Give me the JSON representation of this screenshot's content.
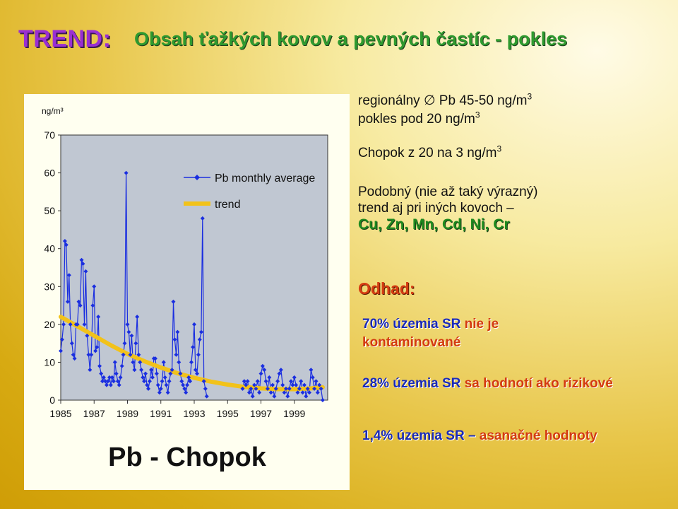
{
  "header": {
    "trend_label": "TREND:",
    "title": "Obsah ťažkých kovov a pevných častíc - pokles"
  },
  "chart_data": {
    "type": "line",
    "title": "Pb - Chopok",
    "ylabel": "ng/m³",
    "xlim": [
      1985,
      2001
    ],
    "ylim": [
      0,
      70
    ],
    "y_ticks": [
      "0",
      "10",
      "20",
      "30",
      "40",
      "50",
      "60",
      "70"
    ],
    "x_ticks": [
      "1985",
      "1987",
      "1989",
      "1991",
      "1993",
      "1995",
      "1997",
      "1999"
    ],
    "grid": false,
    "legend_position": "top-right",
    "series": [
      {
        "name": "Pb monthly average",
        "color": "#1a2ee0",
        "marker": "diamond",
        "x": [
          1985.0,
          1985.08,
          1985.17,
          1985.25,
          1985.33,
          1985.42,
          1985.5,
          1985.58,
          1985.67,
          1985.75,
          1985.83,
          1985.92,
          1986.0,
          1986.08,
          1986.17,
          1986.25,
          1986.33,
          1986.42,
          1986.5,
          1986.58,
          1986.67,
          1986.75,
          1986.83,
          1986.92,
          1987.0,
          1987.08,
          1987.17,
          1987.25,
          1987.33,
          1987.42,
          1987.5,
          1987.58,
          1987.67,
          1987.75,
          1987.83,
          1987.92,
          1988.0,
          1988.08,
          1988.17,
          1988.25,
          1988.33,
          1988.42,
          1988.5,
          1988.58,
          1988.67,
          1988.75,
          1988.83,
          1988.92,
          1989.0,
          1989.08,
          1989.17,
          1989.25,
          1989.33,
          1989.42,
          1989.5,
          1989.58,
          1989.67,
          1989.75,
          1989.83,
          1989.92,
          1990.0,
          1990.08,
          1990.17,
          1990.25,
          1990.33,
          1990.42,
          1990.5,
          1990.58,
          1990.67,
          1990.75,
          1990.83,
          1990.92,
          1991.0,
          1991.08,
          1991.17,
          1991.25,
          1991.33,
          1991.42,
          1991.5,
          1991.58,
          1991.67,
          1991.75,
          1991.83,
          1991.92,
          1992.0,
          1992.08,
          1992.17,
          1992.25,
          1992.33,
          1992.42,
          1992.5,
          1992.58,
          1992.67,
          1992.75,
          1992.83,
          1992.92,
          1993.0,
          1993.08,
          1993.17,
          1993.25,
          1993.33,
          1993.42,
          1993.5,
          1993.58,
          1993.67,
          1993.75
        ],
        "y": [
          13,
          16,
          20,
          42,
          41,
          26,
          33,
          20,
          15,
          12,
          11,
          20,
          20,
          26,
          25,
          37,
          36,
          20,
          34,
          17,
          12,
          8,
          12,
          25,
          30,
          13,
          14,
          22,
          9,
          7,
          5,
          6,
          5,
          4,
          5,
          6,
          4,
          6,
          5,
          10,
          7,
          5,
          4,
          6,
          9,
          12,
          15,
          60,
          20,
          18,
          12,
          17,
          10,
          8,
          15,
          22,
          12,
          10,
          8,
          6,
          5,
          7,
          4,
          3,
          5,
          8,
          6,
          11,
          11,
          7,
          4,
          2,
          3,
          5,
          10,
          6,
          4,
          2,
          5,
          7,
          8,
          26,
          16,
          12,
          18,
          10,
          7,
          5,
          4,
          3,
          2,
          4,
          6,
          5,
          10,
          14,
          20,
          8,
          7,
          12,
          16,
          18,
          48,
          5,
          3,
          1
        ]
      },
      {
        "name": "Pb monthly average",
        "color": "#1a2ee0",
        "marker": "diamond",
        "x": [
          1995.9,
          1996.0,
          1996.1,
          1996.2,
          1996.3,
          1996.4,
          1996.5,
          1996.6,
          1996.7,
          1996.8,
          1996.9,
          1997.0,
          1997.1,
          1997.2,
          1997.3,
          1997.4,
          1997.5,
          1997.6,
          1997.7,
          1997.8,
          1997.9,
          1998.0,
          1998.1,
          1998.2,
          1998.3,
          1998.4,
          1998.5,
          1998.6,
          1998.7,
          1998.8,
          1998.9,
          1999.0,
          1999.1,
          1999.2,
          1999.3,
          1999.4,
          1999.5,
          1999.6,
          1999.7,
          1999.8,
          1999.9,
          2000.0,
          2000.1,
          2000.2,
          2000.3,
          2000.4,
          2000.5,
          2000.6,
          2000.7
        ],
        "y": [
          3,
          5,
          4,
          5,
          2,
          3,
          1,
          4,
          3,
          5,
          2,
          7,
          9,
          8,
          5,
          3,
          6,
          2,
          4,
          1,
          3,
          5,
          7,
          8,
          4,
          2,
          3,
          1,
          3,
          5,
          4,
          6,
          4,
          2,
          3,
          5,
          2,
          4,
          1,
          3,
          2,
          8,
          6,
          3,
          5,
          2,
          4,
          3,
          0
        ]
      },
      {
        "name": "trend",
        "color": "#f2c21a",
        "marker": "none",
        "x": [
          1985,
          1986,
          1987,
          1988,
          1989,
          1990,
          1991,
          1992,
          1993,
          1994,
          1995,
          1996,
          1997,
          1998,
          1999,
          2000,
          2000.7
        ],
        "y": [
          22,
          19.5,
          17,
          14.5,
          12.2,
          10.3,
          8.6,
          7.1,
          5.9,
          4.9,
          4.1,
          3.5,
          3.1,
          2.9,
          2.9,
          3.1,
          3.4
        ]
      }
    ]
  },
  "side": {
    "line1_pre": "regionálny ",
    "line1_sym": "∅",
    "line1_post": " Pb 45-50 ng/m",
    "line1_sup": "3",
    "line2_pre": "pokles pod 20 ng/m",
    "line2_sup": "3",
    "line3_pre": "Chopok z 20 na 3 ng/m",
    "line3_sup": "3",
    "line4": "Podobný (nie až taký výrazný)",
    "line5": "trend aj pri iných kovoch –",
    "metals": "Cu, Zn, Mn, Cd, Ni, Cr",
    "odhad": "Odhad:",
    "e1_blue": "70% územia SR ",
    "e1_red": "nie je kontaminované",
    "e2_blue": "28% územia SR ",
    "e2_red": "sa hodnotí ako rizikové",
    "e3_blue": "1,4% územia SR – ",
    "e3_red": "asanačné hodnoty"
  }
}
